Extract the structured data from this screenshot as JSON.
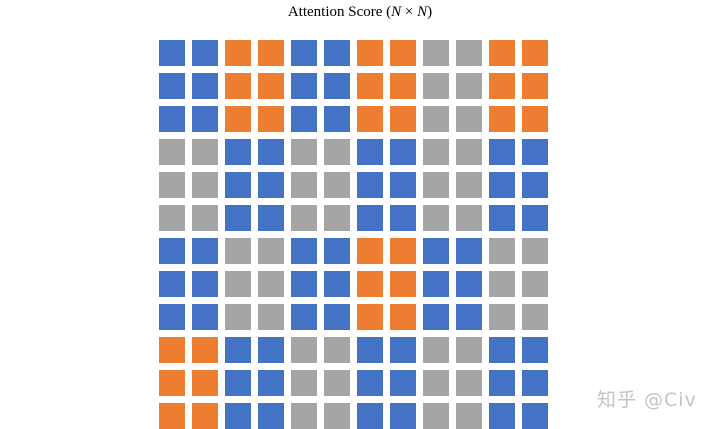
{
  "title": {
    "prefix": "Attention Score (",
    "n1": "N",
    "times": " × ",
    "n2": "N",
    "suffix": ")"
  },
  "colors": {
    "blue": "#4472c4",
    "orange": "#ed7d31",
    "gray": "#a5a5a5"
  },
  "matrix": [
    [
      "blue",
      "blue",
      "orange",
      "orange",
      "blue",
      "blue",
      "orange",
      "orange",
      "gray",
      "gray",
      "orange",
      "orange"
    ],
    [
      "blue",
      "blue",
      "orange",
      "orange",
      "blue",
      "blue",
      "orange",
      "orange",
      "gray",
      "gray",
      "orange",
      "orange"
    ],
    [
      "blue",
      "blue",
      "orange",
      "orange",
      "blue",
      "blue",
      "orange",
      "orange",
      "gray",
      "gray",
      "orange",
      "orange"
    ],
    [
      "gray",
      "gray",
      "blue",
      "blue",
      "gray",
      "gray",
      "blue",
      "blue",
      "gray",
      "gray",
      "blue",
      "blue"
    ],
    [
      "gray",
      "gray",
      "blue",
      "blue",
      "gray",
      "gray",
      "blue",
      "blue",
      "gray",
      "gray",
      "blue",
      "blue"
    ],
    [
      "gray",
      "gray",
      "blue",
      "blue",
      "gray",
      "gray",
      "blue",
      "blue",
      "gray",
      "gray",
      "blue",
      "blue"
    ],
    [
      "blue",
      "blue",
      "gray",
      "gray",
      "blue",
      "blue",
      "orange",
      "orange",
      "blue",
      "blue",
      "gray",
      "gray"
    ],
    [
      "blue",
      "blue",
      "gray",
      "gray",
      "blue",
      "blue",
      "orange",
      "orange",
      "blue",
      "blue",
      "gray",
      "gray"
    ],
    [
      "blue",
      "blue",
      "gray",
      "gray",
      "blue",
      "blue",
      "orange",
      "orange",
      "blue",
      "blue",
      "gray",
      "gray"
    ],
    [
      "orange",
      "orange",
      "blue",
      "blue",
      "gray",
      "gray",
      "blue",
      "blue",
      "gray",
      "gray",
      "blue",
      "blue"
    ],
    [
      "orange",
      "orange",
      "blue",
      "blue",
      "gray",
      "gray",
      "blue",
      "blue",
      "gray",
      "gray",
      "blue",
      "blue"
    ],
    [
      "orange",
      "orange",
      "blue",
      "blue",
      "gray",
      "gray",
      "blue",
      "blue",
      "gray",
      "gray",
      "blue",
      "blue"
    ]
  ],
  "watermark": "知乎 @Civ"
}
